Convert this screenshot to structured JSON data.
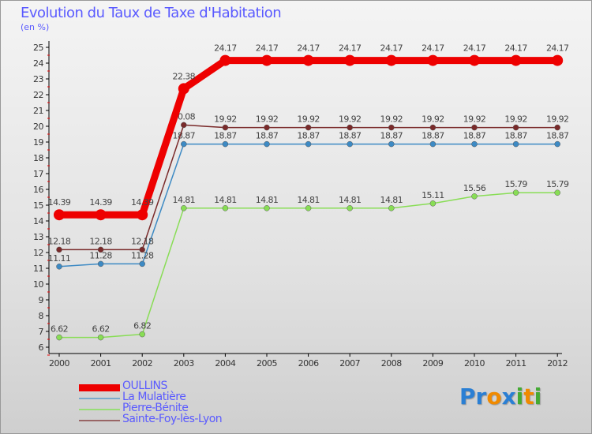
{
  "chart_data": {
    "type": "line",
    "title": "Evolution du Taux de Taxe d'Habitation",
    "subtitle": "(en %)",
    "xlabel": "",
    "ylabel": "(en %)",
    "ylim": [
      6,
      25
    ],
    "yticks": [
      6,
      7,
      8,
      9,
      10,
      11,
      12,
      13,
      14,
      15,
      16,
      17,
      18,
      19,
      20,
      21,
      22,
      23,
      24,
      25
    ],
    "x": [
      "2000",
      "2001",
      "2002",
      "2003",
      "2004",
      "2005",
      "2006",
      "2007",
      "2008",
      "2009",
      "2010",
      "2011",
      "2012"
    ],
    "grid": false,
    "legend_position": "bottom-left",
    "series": [
      {
        "name": "OULLINS",
        "color": "#ee0000",
        "values": [
          14.39,
          14.39,
          14.39,
          22.38,
          24.17,
          24.17,
          24.17,
          24.17,
          24.17,
          24.17,
          24.17,
          24.17,
          24.17
        ]
      },
      {
        "name": "La Mulatière",
        "color": "#3d8ac4",
        "values": [
          11.11,
          11.28,
          11.28,
          18.87,
          18.87,
          18.87,
          18.87,
          18.87,
          18.87,
          18.87,
          18.87,
          18.87,
          18.87
        ]
      },
      {
        "name": "Pierre-Bénite",
        "color": "#88dd55",
        "values": [
          6.62,
          6.62,
          6.82,
          14.81,
          14.81,
          14.81,
          14.81,
          14.81,
          14.81,
          15.11,
          15.56,
          15.79,
          15.79
        ]
      },
      {
        "name": "Sainte-Foy-lès-Lyon",
        "color": "#7a2a2a",
        "values": [
          12.18,
          12.18,
          12.18,
          20.08,
          19.92,
          19.92,
          19.92,
          19.92,
          19.92,
          19.92,
          19.92,
          19.92,
          19.92
        ]
      }
    ]
  },
  "logo": {
    "text": "Proxiti",
    "letters": [
      "P",
      "r",
      "o",
      "x",
      "i",
      "t",
      "i"
    ],
    "colors": [
      "#2a7fd4",
      "#2a7fd4",
      "#f08a00",
      "#2a7fd4",
      "#44aa33",
      "#f08a00",
      "#44aa33"
    ]
  }
}
